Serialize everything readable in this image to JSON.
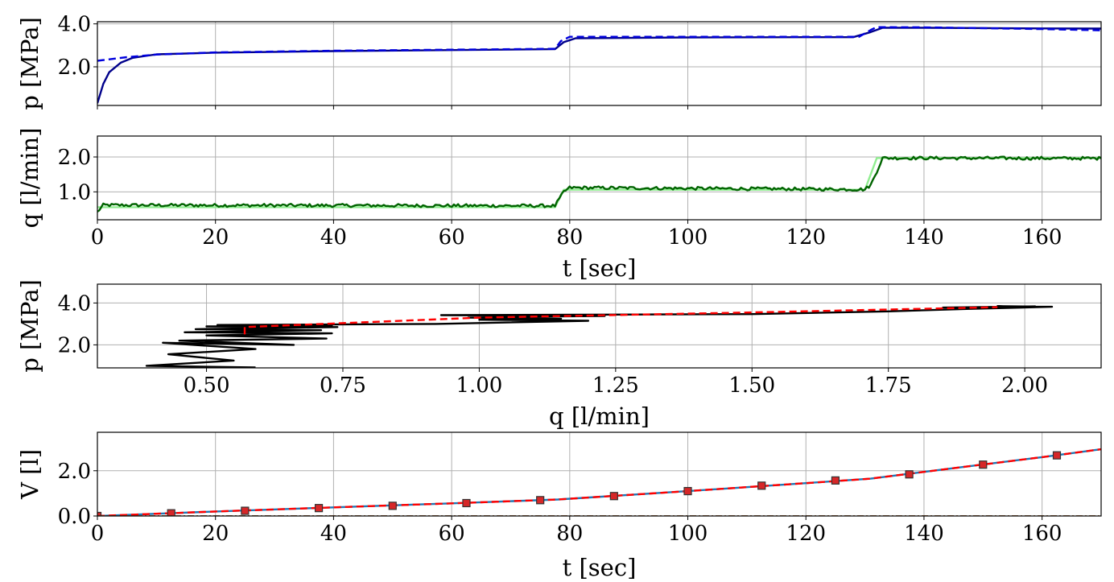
{
  "chart_data": [
    {
      "type": "line",
      "ylabel": "p [MPa]",
      "xlabel": "",
      "xlim": [
        0,
        170
      ],
      "ylim": [
        0.2,
        4.1
      ],
      "x_ticks": [
        0,
        20,
        40,
        60,
        80,
        100,
        120,
        140,
        160
      ],
      "x_tick_labels_shown": false,
      "y_ticks": [
        2.0,
        4.0
      ],
      "y_tick_labels": [
        "2.0",
        "4.0"
      ],
      "grid": true,
      "series": [
        {
          "style": "solid",
          "color": "#00008b",
          "x": [
            0,
            1,
            2,
            4,
            6,
            10,
            20,
            40,
            60,
            77.5,
            79,
            81,
            100,
            120,
            128,
            131,
            133,
            140,
            160,
            170
          ],
          "y": [
            0.3,
            1.2,
            1.75,
            2.2,
            2.42,
            2.58,
            2.66,
            2.73,
            2.78,
            2.82,
            3.15,
            3.33,
            3.37,
            3.38,
            3.38,
            3.62,
            3.82,
            3.82,
            3.79,
            3.78
          ]
        },
        {
          "style": "dashed",
          "color": "#0000dd",
          "x": [
            0,
            5,
            10,
            20,
            40,
            60,
            77.5,
            78.5,
            80,
            100,
            120,
            129,
            131,
            132,
            140,
            160,
            170
          ],
          "y": [
            2.28,
            2.45,
            2.57,
            2.67,
            2.75,
            2.8,
            2.84,
            3.2,
            3.4,
            3.4,
            3.4,
            3.4,
            3.72,
            3.85,
            3.84,
            3.76,
            3.7
          ]
        }
      ]
    },
    {
      "type": "line",
      "ylabel": "q [l/min]",
      "xlabel": "t [sec]",
      "xlim": [
        0,
        170
      ],
      "ylim": [
        0.2,
        2.6
      ],
      "x_ticks": [
        0,
        20,
        40,
        60,
        80,
        100,
        120,
        140,
        160
      ],
      "x_tick_labels": [
        "0",
        "20",
        "40",
        "60",
        "80",
        "100",
        "120",
        "140",
        "160"
      ],
      "y_ticks": [
        1.0,
        2.0
      ],
      "y_tick_labels": [
        "1.0",
        "2.0"
      ],
      "grid": true,
      "series": [
        {
          "style": "solid",
          "color": "#90ee90",
          "x": [
            0,
            77.5,
            79,
            130,
            132,
            170
          ],
          "y": [
            0.56,
            0.56,
            1.06,
            1.06,
            1.97,
            1.97
          ]
        },
        {
          "style": "solid",
          "color": "#006400",
          "noisy": true,
          "x": [
            0,
            1,
            77.5,
            79,
            80,
            130,
            131,
            133,
            170
          ],
          "y": [
            0.42,
            0.62,
            0.6,
            1.0,
            1.12,
            1.07,
            1.2,
            1.97,
            1.96
          ]
        }
      ]
    },
    {
      "type": "line",
      "ylabel": "p [MPa]",
      "xlabel": "q [l/min]",
      "xlim": [
        0.3,
        2.14
      ],
      "ylim": [
        0.9,
        4.9
      ],
      "x_ticks": [
        0.5,
        0.75,
        1.0,
        1.25,
        1.5,
        1.75,
        2.0
      ],
      "x_tick_labels": [
        "0.50",
        "0.75",
        "1.00",
        "1.25",
        "1.50",
        "1.75",
        "2.00"
      ],
      "y_ticks": [
        2.0,
        4.0
      ],
      "y_tick_labels": [
        "2.0",
        "4.0"
      ],
      "grid": true,
      "series": [
        {
          "style": "solid",
          "color": "#000000",
          "x": [
            0.59,
            0.39,
            0.55,
            0.43,
            0.59,
            0.42,
            0.66,
            0.45,
            0.72,
            0.5,
            0.73,
            0.46,
            0.71,
            0.48,
            0.74,
            0.5,
            0.73,
            0.52,
            0.92,
            1.2,
            1.0,
            1.15,
            0.98,
            1.1,
            1.23,
            0.93,
            1.5,
            1.75,
            1.9,
            2.05,
            1.95,
            1.98,
            1.85,
            2.02
          ],
          "y": [
            0.92,
            1.0,
            1.25,
            1.55,
            1.8,
            2.1,
            2.0,
            2.2,
            2.3,
            2.45,
            2.55,
            2.6,
            2.7,
            2.75,
            2.85,
            2.88,
            2.92,
            2.95,
            3.0,
            3.15,
            3.2,
            3.25,
            3.3,
            3.35,
            3.38,
            3.42,
            3.47,
            3.6,
            3.72,
            3.82,
            3.85,
            3.82,
            3.78,
            3.84
          ]
        },
        {
          "style": "dashed",
          "color": "#ff0000",
          "x": [
            0.57,
            0.57,
            1.0,
            1.5,
            1.95
          ],
          "y": [
            2.5,
            2.85,
            3.3,
            3.55,
            3.8
          ]
        }
      ]
    },
    {
      "type": "line",
      "ylabel": "V [l]",
      "xlabel": "t [sec]",
      "xlim": [
        0,
        170
      ],
      "ylim": [
        0.0,
        3.7
      ],
      "x_ticks": [
        0,
        20,
        40,
        60,
        80,
        100,
        120,
        140,
        160
      ],
      "x_tick_labels": [
        "0",
        "20",
        "40",
        "60",
        "80",
        "100",
        "120",
        "140",
        "160"
      ],
      "y_ticks": [
        0.0,
        2.0
      ],
      "y_tick_labels": [
        "0.0",
        "2.0"
      ],
      "grid": true,
      "series": [
        {
          "style": "solid",
          "color": "#1f77b4",
          "x": [
            0,
            20,
            40,
            60,
            78,
            100,
            120,
            131,
            140,
            160,
            170
          ],
          "y": [
            0.0,
            0.2,
            0.38,
            0.56,
            0.73,
            1.1,
            1.45,
            1.65,
            1.95,
            2.6,
            2.95
          ]
        },
        {
          "style": "dashed",
          "color": "#ff0000",
          "x": [
            0,
            20,
            40,
            60,
            78,
            100,
            120,
            131,
            140,
            160,
            170
          ],
          "y": [
            0.0,
            0.2,
            0.38,
            0.56,
            0.73,
            1.1,
            1.45,
            1.65,
            1.95,
            2.6,
            2.95
          ]
        },
        {
          "style": "markers",
          "color": "#d62728",
          "marker": "square",
          "x": [
            0,
            12.5,
            25,
            37.5,
            50,
            62.5,
            75,
            87.5,
            100,
            112.5,
            125,
            137.5,
            150,
            162.5
          ],
          "y": [
            0.0,
            0.12,
            0.23,
            0.35,
            0.45,
            0.57,
            0.7,
            0.88,
            1.1,
            1.34,
            1.57,
            1.84,
            2.27,
            2.68
          ]
        },
        {
          "style": "dashdot",
          "color": "#8b4513",
          "x": [
            0,
            170
          ],
          "y": [
            0.0,
            0.0
          ]
        }
      ]
    }
  ]
}
